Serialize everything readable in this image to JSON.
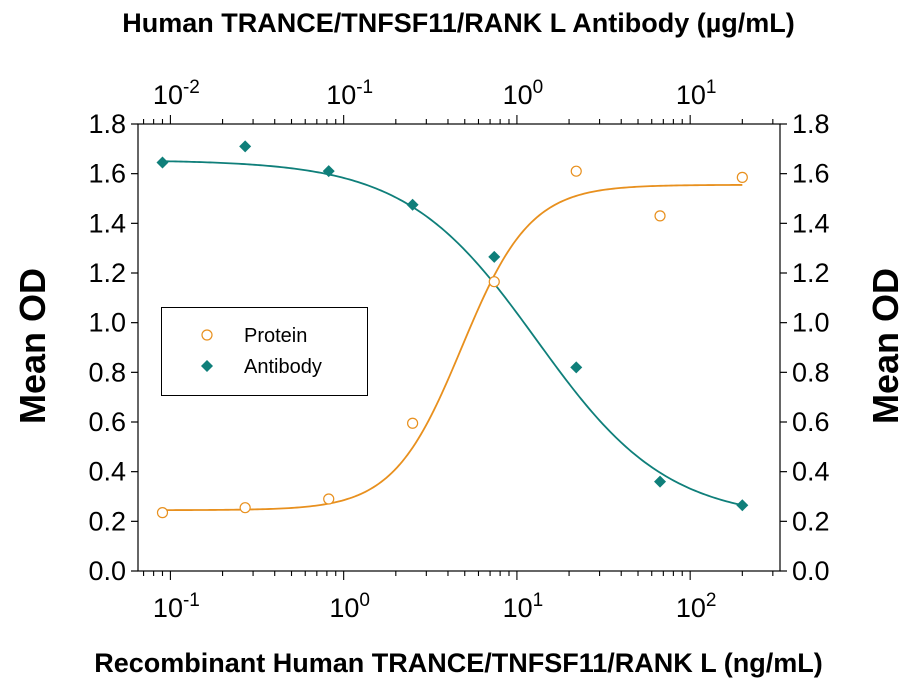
{
  "chart_data": {
    "type": "scatter",
    "title": "",
    "top_axis_label": "Human TRANCE/TNFSF11/RANK L Antibody (µg/mL)",
    "xlabel": "Recombinant Human TRANCE/TNFSF11/RANK L (ng/mL)",
    "ylabel": "Mean OD",
    "y2label": "Mean OD",
    "xscale": "log",
    "xlim": [
      0.065,
      330
    ],
    "ylim": [
      0,
      1.8
    ],
    "yticks": [
      "0.0",
      "0.2",
      "0.4",
      "0.6",
      "0.8",
      "1.0",
      "1.2",
      "1.4",
      "1.6",
      "1.8"
    ],
    "xticks": [
      {
        "base": "10",
        "exp": "-1"
      },
      {
        "base": "10",
        "exp": "0"
      },
      {
        "base": "10",
        "exp": "1"
      },
      {
        "base": "10",
        "exp": "2"
      }
    ],
    "top_xscale": "log",
    "top_xlim": [
      0.0065,
      33
    ],
    "top_xticks": [
      {
        "base": "10",
        "exp": "-2"
      },
      {
        "base": "10",
        "exp": "-1"
      },
      {
        "base": "10",
        "exp": "0"
      },
      {
        "base": "10",
        "exp": "1"
      }
    ],
    "grid": false,
    "legend_position": "center-left",
    "series": [
      {
        "name": "Protein",
        "marker": "open-circle",
        "color": "#E8901E",
        "x": [
          0.09,
          0.27,
          0.82,
          2.5,
          7.4,
          22,
          67,
          200
        ],
        "y": [
          0.235,
          0.255,
          0.29,
          0.595,
          1.165,
          1.61,
          1.43,
          1.585
        ]
      },
      {
        "name": "Antibody",
        "marker": "filled-diamond",
        "color": "#0F7F7A",
        "x": [
          0.09,
          0.27,
          0.82,
          2.5,
          7.4,
          22,
          67,
          200
        ],
        "y": [
          1.645,
          1.71,
          1.61,
          1.475,
          1.265,
          0.82,
          0.36,
          0.265
        ]
      }
    ]
  }
}
